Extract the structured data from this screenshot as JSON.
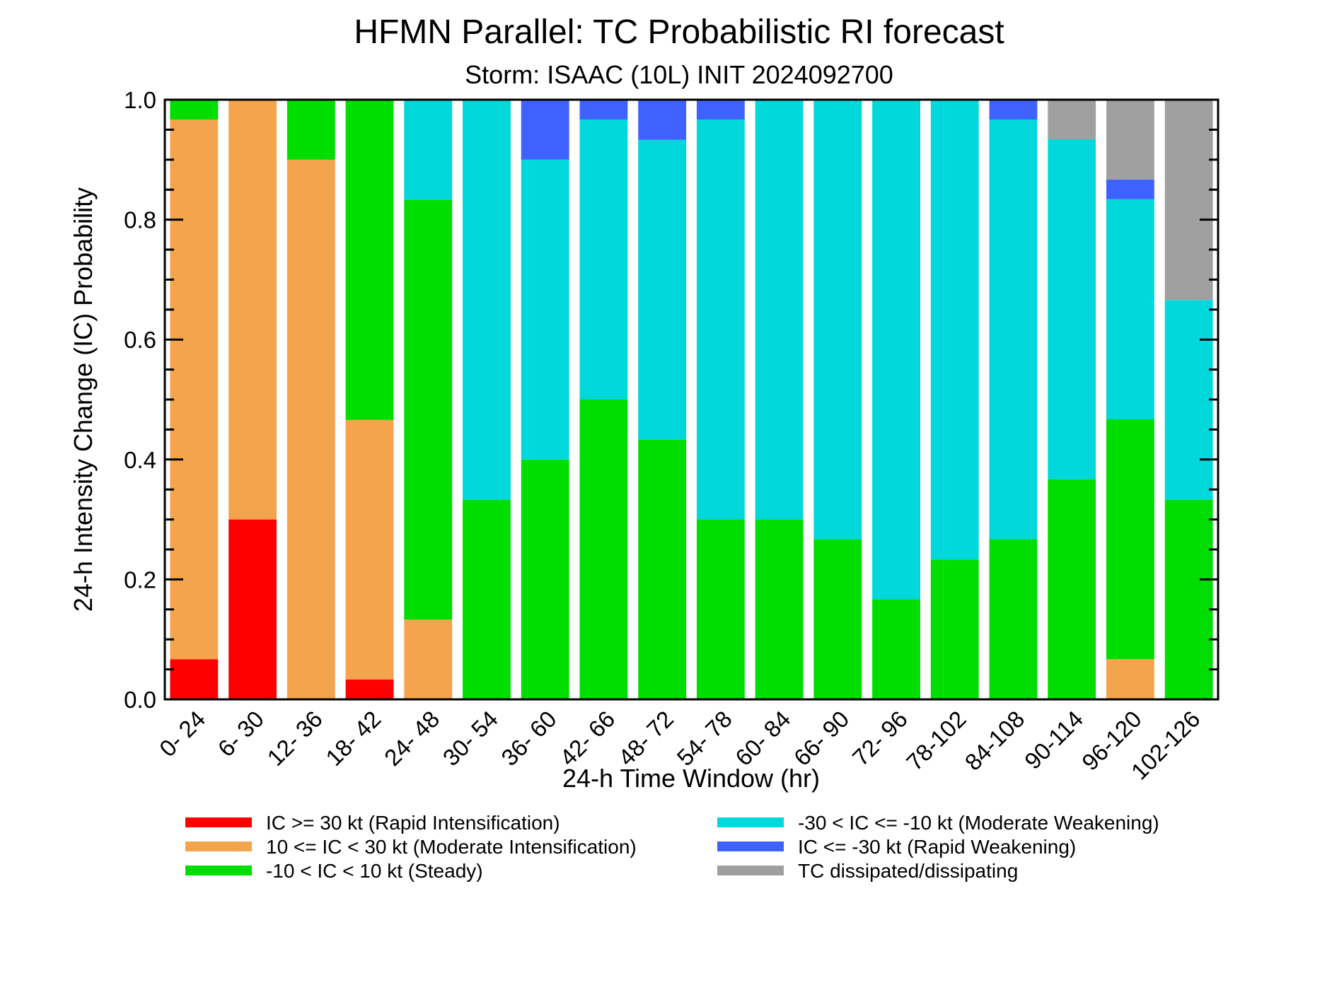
{
  "chart_data": {
    "type": "bar",
    "stacked": true,
    "title": "HFMN Parallel: TC Probabilistic RI forecast",
    "subtitle": "Storm: ISAAC (10L) INIT 2024092700",
    "xlabel": "24-h Time Window (hr)",
    "ylabel": "24-h Intensity Change (IC) Probability",
    "ylim": [
      0,
      1
    ],
    "yticks": [
      "0.0",
      "0.2",
      "0.4",
      "0.6",
      "0.8",
      "1.0"
    ],
    "grid": false,
    "legend_position": "bottom",
    "categories": [
      "0- 24",
      "6- 30",
      "12- 36",
      "18- 42",
      "24- 48",
      "30- 54",
      "36- 60",
      "42- 66",
      "48- 72",
      "54- 78",
      "60- 84",
      "66- 90",
      "72- 96",
      "78-102",
      "84-108",
      "90-114",
      "96-120",
      "102-126"
    ],
    "series": [
      {
        "name": "IC >= 30 kt (Rapid Intensification)",
        "color": "#ff0000",
        "values": [
          0.067,
          0.3,
          0,
          0.033,
          0,
          0,
          0,
          0,
          0,
          0,
          0,
          0,
          0,
          0,
          0,
          0,
          0,
          0
        ]
      },
      {
        "name": "10 <= IC < 30 kt (Moderate Intensification)",
        "color": "#f4a44c",
        "values": [
          0.9,
          0.7,
          0.9,
          0.433,
          0.133,
          0,
          0,
          0,
          0,
          0,
          0,
          0,
          0,
          0,
          0,
          0,
          0.067,
          0
        ]
      },
      {
        "name": "-10 < IC < 10 kt (Steady)",
        "color": "#00dd00",
        "values": [
          0.033,
          0,
          0.1,
          0.533,
          0.7,
          0.333,
          0.4,
          0.5,
          0.433,
          0.3,
          0.3,
          0.267,
          0.167,
          0.233,
          0.267,
          0.367,
          0.4,
          0.333
        ]
      },
      {
        "name": "-30 < IC <= -10 kt (Moderate Weakening)",
        "color": "#00d8dc",
        "values": [
          0,
          0,
          0,
          0,
          0.167,
          0.667,
          0.5,
          0.467,
          0.5,
          0.667,
          0.7,
          0.733,
          0.833,
          0.767,
          0.7,
          0.567,
          0.367,
          0.333
        ]
      },
      {
        "name": "IC <= -30 kt (Rapid Weakening)",
        "color": "#3f62ff",
        "values": [
          0,
          0,
          0,
          0,
          0,
          0,
          0.1,
          0.033,
          0.067,
          0.033,
          0,
          0,
          0,
          0,
          0.033,
          0,
          0.033,
          0
        ]
      },
      {
        "name": "TC dissipated/dissipating",
        "color": "#a0a0a0",
        "values": [
          0,
          0,
          0,
          0,
          0,
          0,
          0,
          0,
          0,
          0,
          0,
          0,
          0,
          0,
          0,
          0.067,
          0.133,
          0.333
        ]
      }
    ]
  }
}
